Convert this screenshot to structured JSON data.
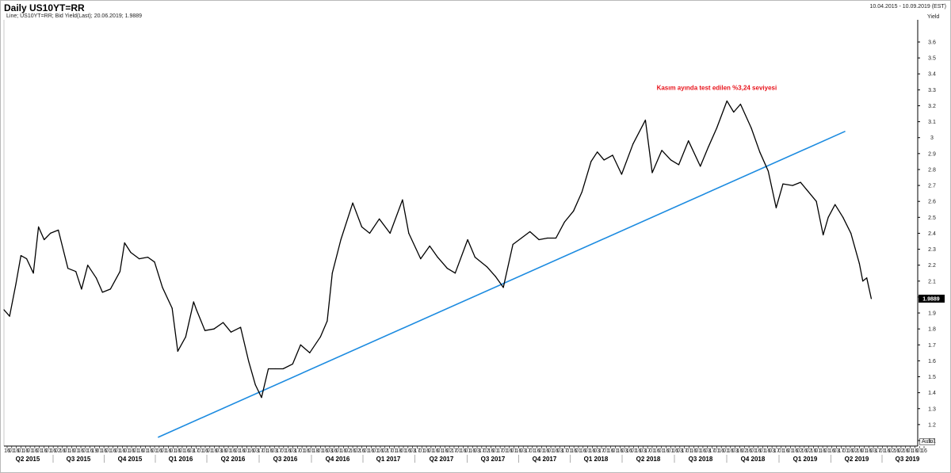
{
  "header": {
    "title": "Daily US10YT=RR",
    "date_range": "10.04.2015 - 10.09.2019 (EST)",
    "subtitle": "Line; US10YT=RR; Bid Yield(Last); 20.06.2019; 1.9889",
    "axis_unit": "Yield",
    "auto_label": "Auto"
  },
  "colors": {
    "line": "#000000",
    "trendline": "#1c8be0",
    "annotation": "#e8141c",
    "last_value_bg": "#000000"
  },
  "chart_data": {
    "type": "line",
    "ylabel": "Yield",
    "ylim": [
      1.0,
      3.7
    ],
    "y_ticks": [
      1.1,
      1.2,
      1.3,
      1.4,
      1.5,
      1.6,
      1.7,
      1.8,
      1.9,
      2.0,
      2.1,
      2.2,
      2.3,
      2.4,
      2.5,
      2.6,
      2.7,
      2.8,
      2.9,
      3.0,
      3.1,
      3.2,
      3.3,
      3.4,
      3.5,
      3.6
    ],
    "x_range": [
      "2015-04-10",
      "2019-09-10"
    ],
    "last_value": "1.9889",
    "quarters": [
      "Q2 2015",
      "Q3 2015",
      "Q4 2015",
      "Q1 2016",
      "Q2 2016",
      "Q3 2016",
      "Q4 2016",
      "Q1 2017",
      "Q2 2017",
      "Q3 2017",
      "Q4 2017",
      "Q1 2018",
      "Q2 2018",
      "Q3 2018",
      "Q4 2018",
      "Q1 2019",
      "Q2 2019",
      "Q3 2019"
    ],
    "day_ticks": [
      "16",
      "01",
      "16",
      "01",
      "16",
      "01",
      "16",
      "01",
      "16",
      "01",
      "16",
      "02",
      "16",
      "01",
      "16",
      "01",
      "16",
      "01",
      "16",
      "19",
      "01",
      "16",
      "01",
      "16",
      "01",
      "16",
      "01",
      "16",
      "01",
      "16",
      "01",
      "16",
      "01",
      "16",
      "01",
      "16",
      "01",
      "16",
      "01",
      "16",
      "03",
      "17",
      "01",
      "16",
      "01",
      "16",
      "03",
      "16",
      "01",
      "16",
      "01",
      "16",
      "01",
      "16",
      "03",
      "17",
      "01",
      "16",
      "03",
      "17",
      "01",
      "16",
      "03",
      "17",
      "01",
      "16",
      "01",
      "18",
      "01",
      "16",
      "03",
      "16",
      "01",
      "16",
      "02",
      "16",
      "02",
      "16",
      "01",
      "16",
      "01",
      "16",
      "02",
      "17",
      "01",
      "18",
      "01",
      "16",
      "03",
      "17",
      "01",
      "16",
      "01",
      "16",
      "01",
      "16",
      "02",
      "17",
      "01",
      "16",
      "01",
      "16",
      "03",
      "17",
      "02",
      "16",
      "01",
      "17",
      "01",
      "16",
      "01",
      "16",
      "03",
      "17",
      "01",
      "16",
      "01",
      "16",
      "01",
      "16",
      "03",
      "17",
      "01",
      "16",
      "01",
      "16",
      "01",
      "16",
      "03",
      "17",
      "01",
      "16",
      "01",
      "16",
      "03",
      "16",
      "01",
      "16",
      "03",
      "17",
      "01",
      "16",
      "01",
      "16",
      "01",
      "16",
      "03",
      "17",
      "01",
      "16",
      "01",
      "16",
      "03",
      "17",
      "01",
      "16",
      "01",
      "16",
      "03",
      "16",
      "02",
      "16",
      "01",
      "16",
      "01",
      "16",
      "03",
      "17",
      "01",
      "16",
      "01",
      "16",
      "02",
      "16",
      "02",
      "16",
      "01",
      "16",
      "01",
      "16",
      "03",
      "17",
      "01",
      "16",
      "02",
      "16",
      "01",
      "16",
      "03",
      "17",
      "01",
      "16",
      "02",
      "16",
      "02",
      "16",
      "01",
      "16",
      "01",
      "16"
    ],
    "series": [
      {
        "x": [
          "2015-04-10",
          "2015-04-20",
          "2015-05-01",
          "2015-05-10",
          "2015-05-20",
          "2015-06-01",
          "2015-06-10",
          "2015-06-20",
          "2015-07-01",
          "2015-07-15",
          "2015-08-01",
          "2015-08-15",
          "2015-08-25",
          "2015-09-05",
          "2015-09-20",
          "2015-10-01",
          "2015-10-15",
          "2015-11-01",
          "2015-11-09",
          "2015-11-20",
          "2015-12-05",
          "2015-12-20",
          "2016-01-01",
          "2016-01-15",
          "2016-02-01",
          "2016-02-11",
          "2016-02-25",
          "2016-03-10",
          "2016-03-15",
          "2016-03-30",
          "2016-04-15",
          "2016-05-01",
          "2016-05-15",
          "2016-06-01",
          "2016-06-15",
          "2016-06-27",
          "2016-07-08",
          "2016-07-20",
          "2016-08-01",
          "2016-08-15",
          "2016-09-01",
          "2016-09-15",
          "2016-10-01",
          "2016-10-20",
          "2016-11-01",
          "2016-11-10",
          "2016-11-25",
          "2016-12-16",
          "2017-01-01",
          "2017-01-15",
          "2017-02-01",
          "2017-02-20",
          "2017-03-14",
          "2017-03-25",
          "2017-04-15",
          "2017-05-01",
          "2017-05-15",
          "2017-06-01",
          "2017-06-15",
          "2017-07-07",
          "2017-07-20",
          "2017-08-10",
          "2017-08-25",
          "2017-09-08",
          "2017-09-25",
          "2017-10-10",
          "2017-10-25",
          "2017-11-10",
          "2017-11-25",
          "2017-12-10",
          "2017-12-25",
          "2018-01-10",
          "2018-01-25",
          "2018-02-10",
          "2018-02-21",
          "2018-03-05",
          "2018-03-20",
          "2018-04-05",
          "2018-04-25",
          "2018-05-17",
          "2018-05-29",
          "2018-06-15",
          "2018-07-01",
          "2018-07-15",
          "2018-08-01",
          "2018-08-22",
          "2018-09-05",
          "2018-09-20",
          "2018-10-08",
          "2018-10-20",
          "2018-11-01",
          "2018-11-20",
          "2018-12-05",
          "2018-12-20",
          "2019-01-03",
          "2019-01-15",
          "2019-02-01",
          "2019-02-15",
          "2019-03-01",
          "2019-03-15",
          "2019-03-27",
          "2019-04-05",
          "2019-04-17",
          "2019-05-01",
          "2019-05-15",
          "2019-05-30",
          "2019-06-05",
          "2019-06-12",
          "2019-06-20"
        ],
        "y": [
          1.92,
          1.88,
          2.08,
          2.26,
          2.24,
          2.15,
          2.44,
          2.36,
          2.4,
          2.42,
          2.18,
          2.16,
          2.05,
          2.2,
          2.12,
          2.03,
          2.05,
          2.16,
          2.34,
          2.28,
          2.24,
          2.25,
          2.22,
          2.06,
          1.93,
          1.66,
          1.75,
          1.97,
          1.92,
          1.79,
          1.8,
          1.84,
          1.78,
          1.81,
          1.6,
          1.45,
          1.37,
          1.55,
          1.55,
          1.55,
          1.58,
          1.7,
          1.65,
          1.75,
          1.85,
          2.15,
          2.36,
          2.59,
          2.44,
          2.4,
          2.49,
          2.4,
          2.61,
          2.4,
          2.24,
          2.32,
          2.25,
          2.18,
          2.15,
          2.36,
          2.25,
          2.19,
          2.13,
          2.06,
          2.33,
          2.37,
          2.41,
          2.36,
          2.37,
          2.37,
          2.47,
          2.54,
          2.66,
          2.85,
          2.91,
          2.86,
          2.89,
          2.77,
          2.96,
          3.11,
          2.78,
          2.92,
          2.86,
          2.83,
          2.98,
          2.82,
          2.94,
          3.06,
          3.23,
          3.16,
          3.21,
          3.06,
          2.91,
          2.79,
          2.56,
          2.71,
          2.7,
          2.72,
          2.66,
          2.6,
          2.39,
          2.5,
          2.58,
          2.5,
          2.4,
          2.21,
          2.1,
          2.12,
          1.99
        ]
      }
    ],
    "trendline": {
      "from": [
        "2016-01-07",
        1.12
      ],
      "to": [
        "2019-05-05",
        3.04
      ]
    },
    "annotations": [
      {
        "text": "Kasım ayında test edilen %3,24 seviyesi",
        "x": "2018-09-20",
        "y": 3.3
      }
    ]
  }
}
